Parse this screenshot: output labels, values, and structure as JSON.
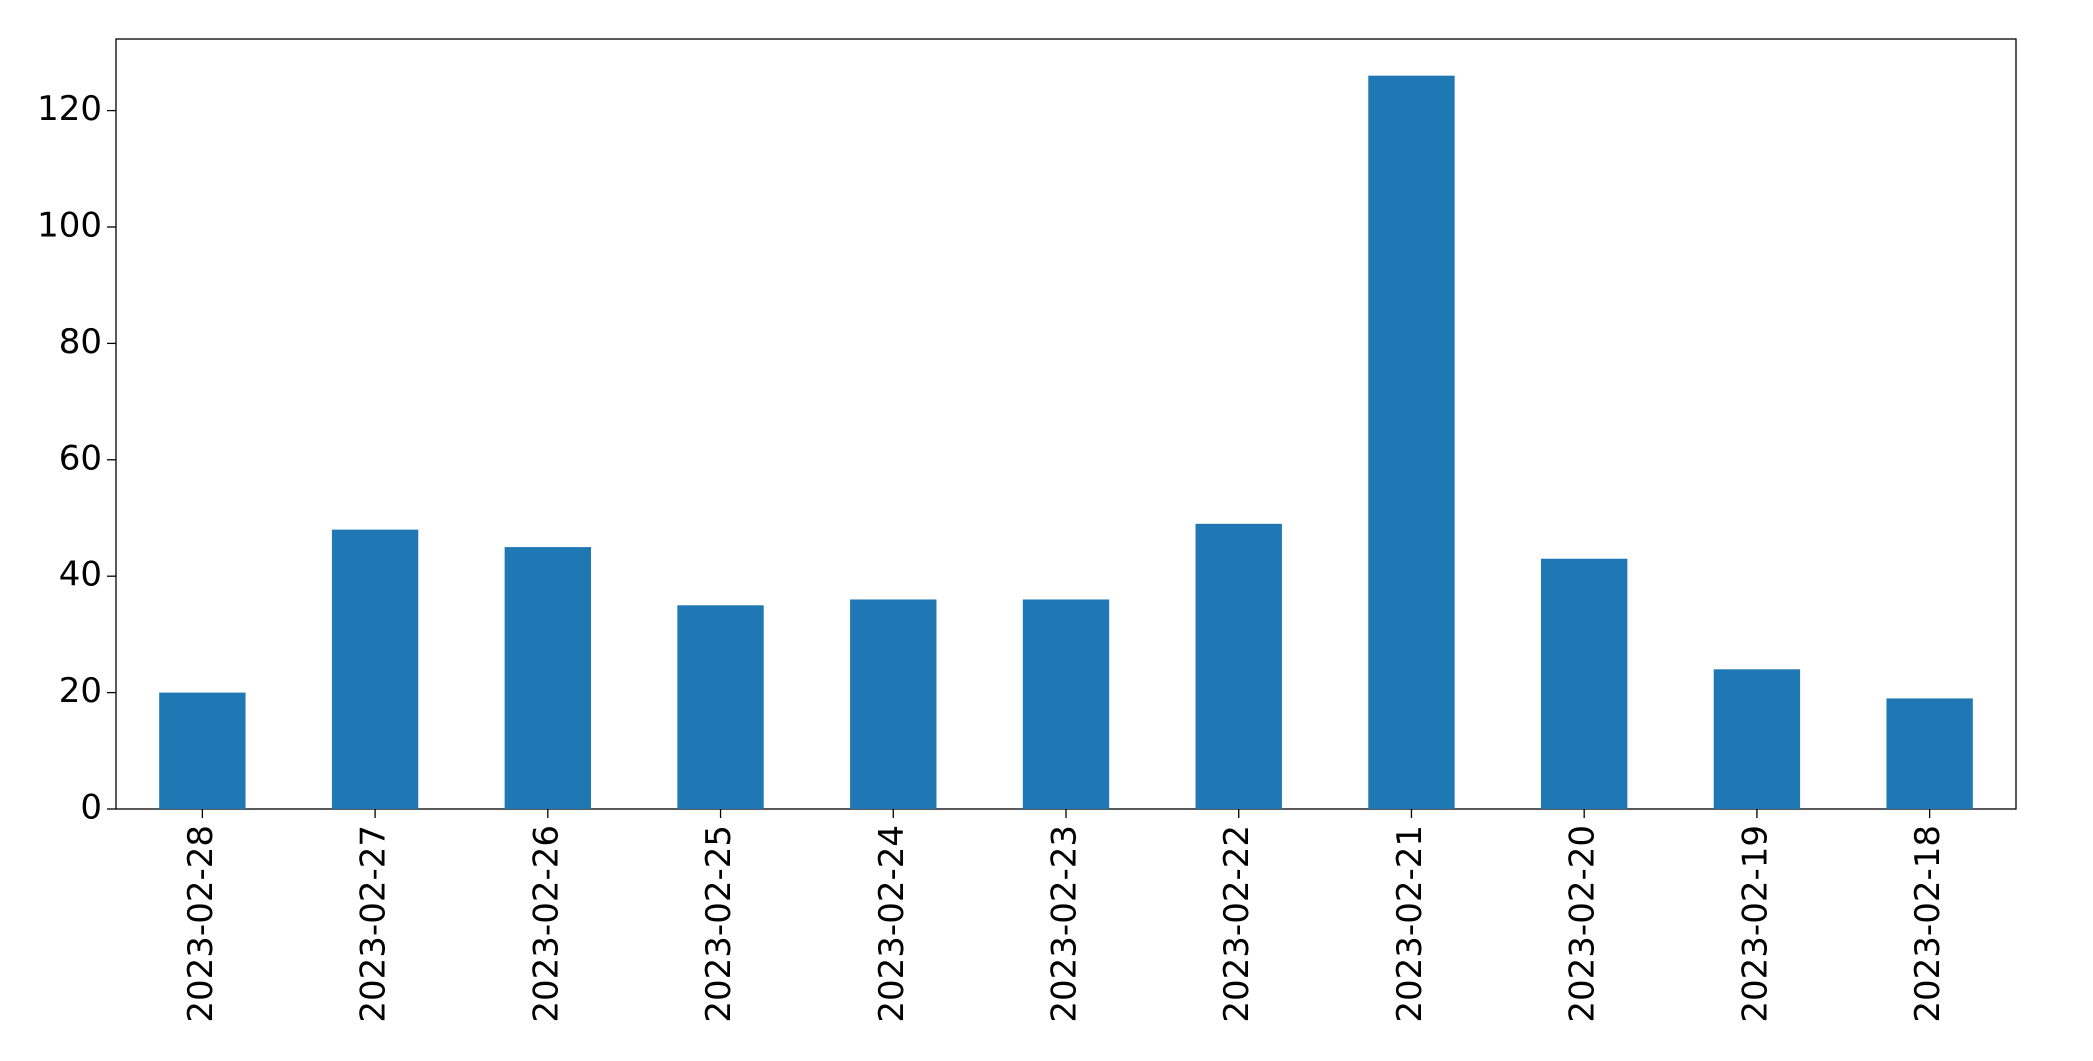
{
  "chart_data": {
    "type": "bar",
    "categories": [
      "2023-02-28",
      "2023-02-27",
      "2023-02-26",
      "2023-02-25",
      "2023-02-24",
      "2023-02-23",
      "2023-02-22",
      "2023-02-21",
      "2023-02-20",
      "2023-02-19",
      "2023-02-18"
    ],
    "values": [
      20,
      48,
      45,
      35,
      36,
      36,
      49,
      126,
      43,
      24,
      19
    ],
    "color": "#1f77b4",
    "ylim": [
      0,
      132.3
    ],
    "yticks": [
      0,
      20,
      40,
      60,
      80,
      100,
      120
    ],
    "grid": false
  }
}
